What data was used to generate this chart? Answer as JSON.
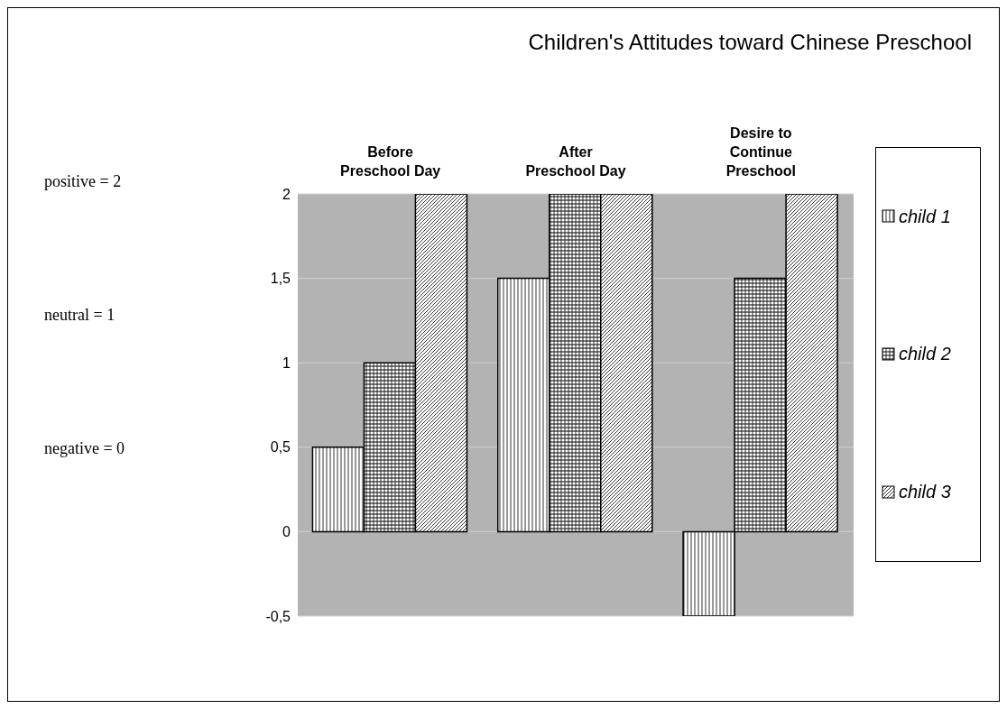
{
  "chart_data": {
    "type": "bar",
    "title": "Children's Attitudes toward Chinese Preschool",
    "categories": [
      "Before Preschool Day",
      "After Preschool Day",
      "Desire to Continue Preschool"
    ],
    "series": [
      {
        "name": "child 1",
        "color": "#000000",
        "values": [
          0.5,
          1.5,
          -0.5
        ]
      },
      {
        "name": "child 2",
        "color": "#000000",
        "values": [
          1,
          2,
          1.5
        ]
      },
      {
        "name": "child 3",
        "color": "#000000",
        "values": [
          2,
          2,
          2
        ]
      }
    ],
    "ylim": [
      -0.5,
      2
    ],
    "yticks": [
      {
        "value": -0.5,
        "label": "-0,5"
      },
      0,
      {
        "value": 0.5,
        "label": "0,5"
      },
      1,
      {
        "value": 1.5,
        "label": "1,5"
      },
      2
    ],
    "annotations": [
      "positive = 2",
      "neutral = 1",
      "negative = 0"
    ],
    "grid": "y",
    "legend": "right"
  }
}
